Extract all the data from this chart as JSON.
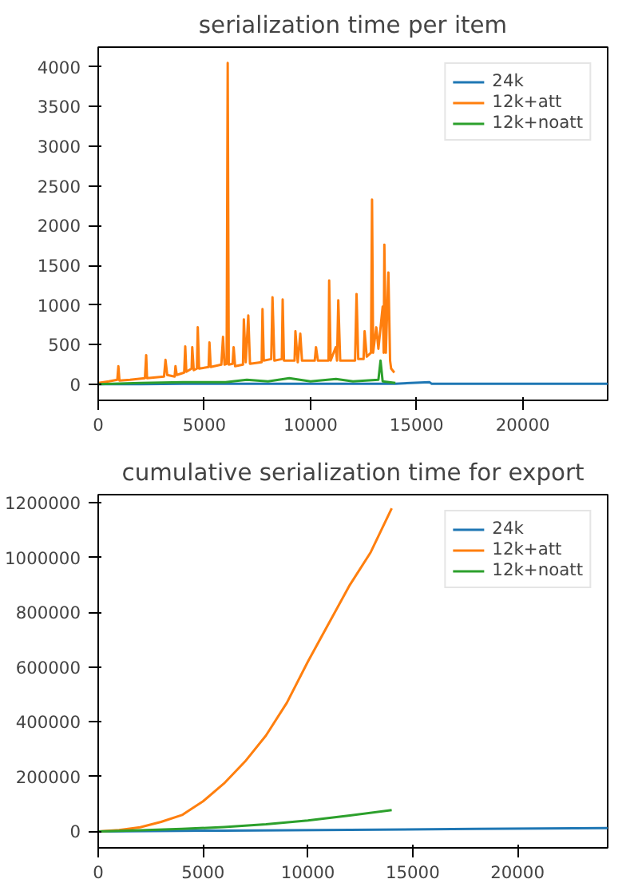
{
  "chart_data": [
    {
      "type": "line",
      "title": "serialization time per item",
      "xlim": [
        0,
        24000
      ],
      "xticks": [
        0,
        5000,
        10000,
        15000,
        20000
      ],
      "ylim": [
        -200,
        4250
      ],
      "yticks": [
        0,
        500,
        1000,
        1500,
        2000,
        2500,
        3000,
        3500,
        4000
      ],
      "legend": "top right",
      "grid": false,
      "series": [
        {
          "name": "24k",
          "color": "#1f77b4",
          "x": [
            0,
            2000,
            4000,
            6000,
            8000,
            10000,
            12000,
            14000,
            15600,
            15700,
            16000,
            18000,
            20000,
            22000,
            24000
          ],
          "values": [
            5,
            5,
            8,
            8,
            8,
            10,
            10,
            10,
            30,
            10,
            8,
            8,
            8,
            8,
            8
          ]
        },
        {
          "name": "12k+att",
          "color": "#ff7f0e",
          "x": [
            0,
            500,
            900,
            950,
            1000,
            1500,
            2200,
            2260,
            2300,
            3100,
            3170,
            3250,
            3600,
            3640,
            3700,
            4050,
            4100,
            4150,
            4400,
            4430,
            4500,
            4650,
            4690,
            4750,
            5200,
            5240,
            5300,
            5800,
            5880,
            5950,
            6050,
            6100,
            6150,
            6330,
            6380,
            6450,
            6820,
            6860,
            6950,
            7070,
            7150,
            7700,
            7740,
            7800,
            8150,
            8210,
            8300,
            8650,
            8690,
            8750,
            9250,
            9290,
            9400,
            9520,
            9600,
            10200,
            10260,
            10350,
            10850,
            10880,
            10950,
            11190,
            11250,
            11310,
            11400,
            12100,
            12170,
            12250,
            12500,
            12550,
            12650,
            12850,
            12900,
            12950,
            13100,
            13200,
            13400,
            13450,
            13480,
            13550,
            13670,
            13750,
            13800,
            13950
          ],
          "values": [
            20,
            40,
            60,
            230,
            50,
            60,
            80,
            370,
            80,
            100,
            310,
            120,
            100,
            230,
            120,
            150,
            480,
            160,
            200,
            470,
            180,
            200,
            720,
            200,
            220,
            530,
            220,
            250,
            600,
            250,
            260,
            4050,
            250,
            260,
            470,
            230,
            250,
            820,
            280,
            870,
            260,
            280,
            950,
            300,
            320,
            1100,
            300,
            320,
            1070,
            300,
            300,
            670,
            280,
            640,
            300,
            300,
            470,
            300,
            300,
            1310,
            300,
            470,
            300,
            1060,
            300,
            300,
            1140,
            320,
            320,
            670,
            350,
            400,
            2330,
            400,
            720,
            450,
            980,
            400,
            1760,
            400,
            1410,
            300,
            200,
            150
          ]
        },
        {
          "name": "12k+noatt",
          "color": "#2ca02c",
          "x": [
            0,
            2000,
            4000,
            6000,
            7000,
            8000,
            9000,
            10000,
            11200,
            12000,
            13200,
            13300,
            13400,
            14000
          ],
          "values": [
            5,
            20,
            30,
            30,
            60,
            40,
            80,
            40,
            70,
            40,
            60,
            300,
            40,
            20
          ]
        }
      ]
    },
    {
      "type": "line",
      "title": "cumulative serialization time for export",
      "xlim": [
        0,
        24300
      ],
      "xticks": [
        0,
        5000,
        10000,
        15000,
        20000
      ],
      "ylim": [
        -60000,
        1230000
      ],
      "yticks": [
        0,
        200000,
        400000,
        600000,
        800000,
        1000000,
        1200000
      ],
      "legend": "top right",
      "grid": false,
      "series": [
        {
          "name": "24k",
          "color": "#1f77b4",
          "x": [
            0,
            6000,
            12000,
            18000,
            24300
          ],
          "values": [
            0,
            3000,
            6000,
            9000,
            12000
          ]
        },
        {
          "name": "12k+att",
          "color": "#ff7f0e",
          "x": [
            0,
            1000,
            2000,
            3000,
            4000,
            5000,
            6000,
            7000,
            8000,
            9000,
            10000,
            11000,
            12000,
            13000,
            14000
          ],
          "values": [
            0,
            5000,
            15000,
            35000,
            60000,
            110000,
            175000,
            255000,
            350000,
            470000,
            620000,
            760000,
            900000,
            1020000,
            1180000
          ]
        },
        {
          "name": "12k+noatt",
          "color": "#2ca02c",
          "x": [
            0,
            2000,
            4000,
            6000,
            8000,
            10000,
            12000,
            14000
          ],
          "values": [
            0,
            4000,
            9000,
            16000,
            26000,
            40000,
            58000,
            78000
          ]
        }
      ]
    }
  ]
}
